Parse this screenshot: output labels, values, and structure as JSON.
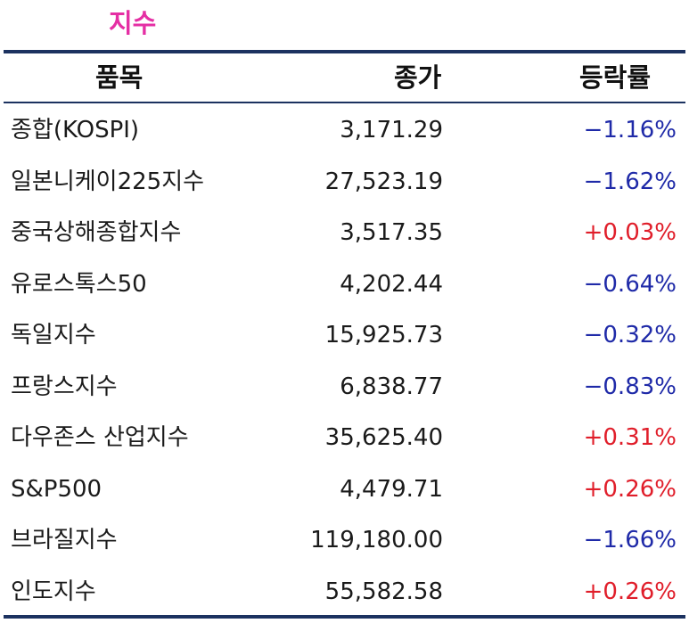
{
  "title": "지수",
  "columns": {
    "name": "품목",
    "close": "종가",
    "change": "등락률"
  },
  "colors": {
    "title": "#e52fa4",
    "rule": "#1c3260",
    "down": "#1f2aa8",
    "up": "#e01e2a"
  },
  "rows": [
    {
      "name": "종합(KOSPI)",
      "close": "3,171.29",
      "change": "−1.16%",
      "direction": "down"
    },
    {
      "name": "일본니케이225지수",
      "close": "27,523.19",
      "change": "−1.62%",
      "direction": "down"
    },
    {
      "name": "중국상해종합지수",
      "close": "3,517.35",
      "change": "+0.03%",
      "direction": "up"
    },
    {
      "name": "유로스톡스50",
      "close": "4,202.44",
      "change": "−0.64%",
      "direction": "down"
    },
    {
      "name": "독일지수",
      "close": "15,925.73",
      "change": "−0.32%",
      "direction": "down"
    },
    {
      "name": "프랑스지수",
      "close": "6,838.77",
      "change": "−0.83%",
      "direction": "down"
    },
    {
      "name": "다우존스 산업지수",
      "close": "35,625.40",
      "change": "+0.31%",
      "direction": "up"
    },
    {
      "name": "S&P500",
      "close": "4,479.71",
      "change": "+0.26%",
      "direction": "up"
    },
    {
      "name": "브라질지수",
      "close": "119,180.00",
      "change": "−1.66%",
      "direction": "down"
    },
    {
      "name": "인도지수",
      "close": "55,582.58",
      "change": "+0.26%",
      "direction": "up"
    }
  ]
}
